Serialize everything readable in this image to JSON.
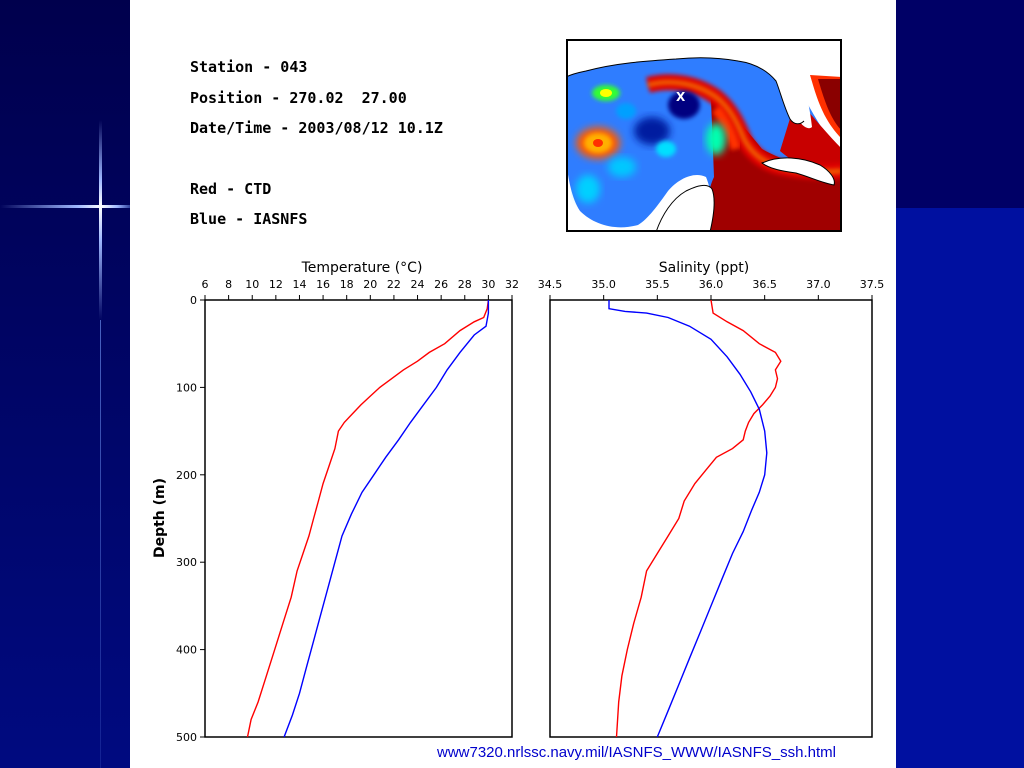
{
  "station": "Station - 043",
  "position": "Position - 270.02  27.00",
  "datetime": "Date/Time - 2003/08/12 10.1Z",
  "legend_red": "Red - CTD",
  "legend_blue": "Blue - IASNFS",
  "map_marker": "X",
  "caption": "www7320.nrlssc.navy.mil/IASNFS_WWW/IASNFS_ssh.html",
  "colors": {
    "ctd": "#ff0000",
    "iasnfs": "#0000ff",
    "caption": "#0000cc"
  },
  "chart_data": [
    {
      "type": "line",
      "title": "Temperature (°C)",
      "ylabel": "Depth (m)",
      "xlim": [
        6,
        32
      ],
      "ylim": [
        500,
        0
      ],
      "x_ticks": [
        6,
        8,
        10,
        12,
        14,
        16,
        18,
        20,
        22,
        24,
        26,
        28,
        30,
        32
      ],
      "y_ticks": [
        0,
        100,
        200,
        300,
        400,
        500
      ],
      "series": [
        {
          "name": "CTD",
          "color": "#ff0000",
          "points": [
            [
              30.0,
              0
            ],
            [
              29.9,
              10
            ],
            [
              29.6,
              20
            ],
            [
              28.8,
              25
            ],
            [
              27.6,
              35
            ],
            [
              26.3,
              50
            ],
            [
              25.0,
              60
            ],
            [
              24.0,
              70
            ],
            [
              22.8,
              80
            ],
            [
              21.8,
              90
            ],
            [
              20.8,
              100
            ],
            [
              20.0,
              110
            ],
            [
              19.2,
              120
            ],
            [
              18.5,
              130
            ],
            [
              17.8,
              140
            ],
            [
              17.3,
              150
            ],
            [
              17.0,
              170
            ],
            [
              16.5,
              190
            ],
            [
              16.0,
              210
            ],
            [
              15.6,
              230
            ],
            [
              15.2,
              250
            ],
            [
              14.8,
              270
            ],
            [
              14.3,
              290
            ],
            [
              13.8,
              310
            ],
            [
              13.3,
              340
            ],
            [
              12.6,
              370
            ],
            [
              11.9,
              400
            ],
            [
              11.2,
              430
            ],
            [
              10.5,
              460
            ],
            [
              9.9,
              480
            ],
            [
              9.6,
              500
            ]
          ]
        },
        {
          "name": "IASNFS",
          "color": "#0000ff",
          "points": [
            [
              30.0,
              0
            ],
            [
              30.0,
              15
            ],
            [
              29.8,
              30
            ],
            [
              28.8,
              40
            ],
            [
              27.6,
              60
            ],
            [
              26.5,
              80
            ],
            [
              25.6,
              100
            ],
            [
              24.5,
              120
            ],
            [
              23.4,
              140
            ],
            [
              22.4,
              160
            ],
            [
              21.3,
              180
            ],
            [
              20.3,
              200
            ],
            [
              19.3,
              220
            ],
            [
              18.4,
              245
            ],
            [
              17.6,
              270
            ],
            [
              17.0,
              300
            ],
            [
              16.4,
              330
            ],
            [
              15.8,
              360
            ],
            [
              15.2,
              390
            ],
            [
              14.6,
              420
            ],
            [
              14.0,
              450
            ],
            [
              13.4,
              475
            ],
            [
              12.7,
              500
            ]
          ]
        }
      ]
    },
    {
      "type": "line",
      "title": "Salinity (ppt)",
      "ylabel": "",
      "xlim": [
        34.5,
        37.5
      ],
      "ylim": [
        500,
        0
      ],
      "x_ticks": [
        34.5,
        35.0,
        35.5,
        36.0,
        36.5,
        37.0,
        37.5
      ],
      "x_tick_labels": [
        "34.5",
        "35.0",
        "35.5",
        "36.0",
        "36.5",
        "37.0",
        "37.5"
      ],
      "y_ticks": [
        0,
        100,
        200,
        300,
        400,
        500
      ],
      "series": [
        {
          "name": "CTD",
          "color": "#ff0000",
          "points": [
            [
              36.0,
              0
            ],
            [
              36.02,
              15
            ],
            [
              36.15,
              25
            ],
            [
              36.3,
              35
            ],
            [
              36.45,
              50
            ],
            [
              36.6,
              60
            ],
            [
              36.65,
              70
            ],
            [
              36.6,
              80
            ],
            [
              36.62,
              90
            ],
            [
              36.6,
              100
            ],
            [
              36.55,
              110
            ],
            [
              36.48,
              120
            ],
            [
              36.4,
              130
            ],
            [
              36.35,
              140
            ],
            [
              36.32,
              150
            ],
            [
              36.3,
              160
            ],
            [
              36.2,
              170
            ],
            [
              36.05,
              180
            ],
            [
              35.95,
              195
            ],
            [
              35.85,
              210
            ],
            [
              35.75,
              230
            ],
            [
              35.7,
              250
            ],
            [
              35.6,
              270
            ],
            [
              35.5,
              290
            ],
            [
              35.4,
              310
            ],
            [
              35.35,
              340
            ],
            [
              35.28,
              370
            ],
            [
              35.22,
              400
            ],
            [
              35.17,
              430
            ],
            [
              35.14,
              460
            ],
            [
              35.13,
              480
            ],
            [
              35.12,
              500
            ]
          ]
        },
        {
          "name": "IASNFS",
          "color": "#0000ff",
          "points": [
            [
              35.05,
              0
            ],
            [
              35.05,
              10
            ],
            [
              35.2,
              13
            ],
            [
              35.4,
              15
            ],
            [
              35.6,
              20
            ],
            [
              35.8,
              30
            ],
            [
              36.0,
              45
            ],
            [
              36.15,
              65
            ],
            [
              36.27,
              85
            ],
            [
              36.37,
              105
            ],
            [
              36.45,
              125
            ],
            [
              36.5,
              150
            ],
            [
              36.52,
              175
            ],
            [
              36.5,
              200
            ],
            [
              36.45,
              220
            ],
            [
              36.38,
              240
            ],
            [
              36.3,
              265
            ],
            [
              36.2,
              290
            ],
            [
              36.1,
              320
            ],
            [
              36.0,
              350
            ],
            [
              35.9,
              380
            ],
            [
              35.8,
              410
            ],
            [
              35.7,
              440
            ],
            [
              35.6,
              470
            ],
            [
              35.5,
              500
            ]
          ]
        }
      ]
    }
  ]
}
